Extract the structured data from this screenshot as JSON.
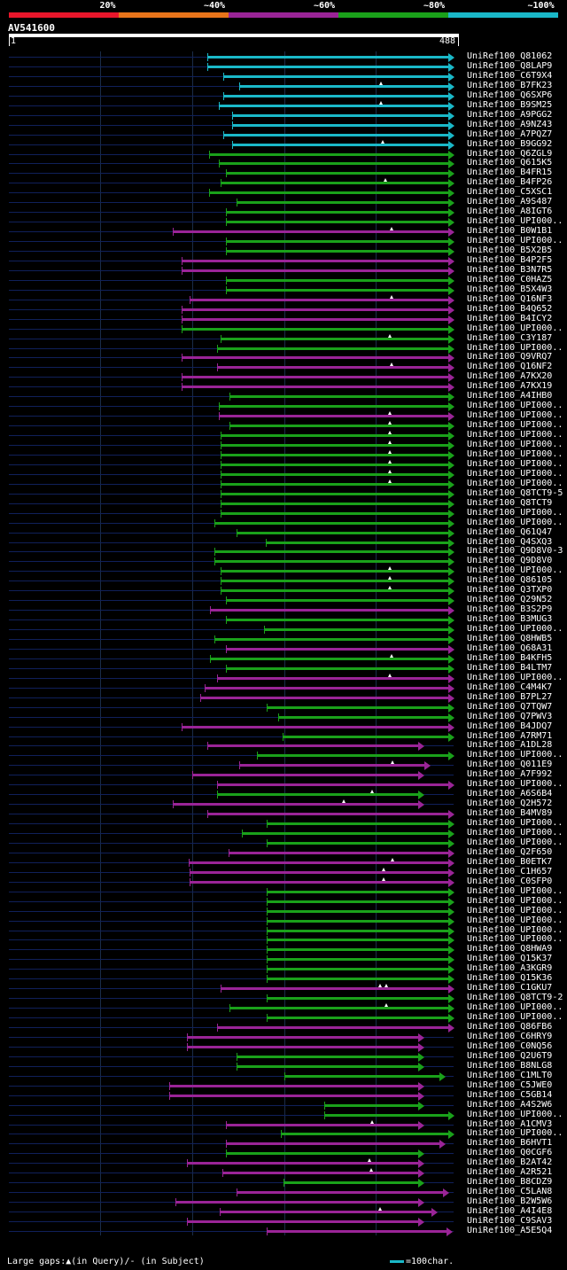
{
  "legend": [
    {
      "label": "20%",
      "color": "#e8162b"
    },
    {
      "label": "~40%",
      "color": "#e8741a"
    },
    {
      "label": "~60%",
      "color": "#9a2497"
    },
    {
      "label": "~80%",
      "color": "#1aa11a"
    },
    {
      "label": "~100%",
      "color": "#1ab8c8"
    }
  ],
  "query": {
    "title": "AV541600",
    "start": "1",
    "end": "488",
    "length": 488
  },
  "hits": [
    {
      "id": "UniRef100_Q81062",
      "c": "cyan",
      "s": 218,
      "e": 488
    },
    {
      "id": "UniRef100_Q8LAP9",
      "c": "cyan",
      "s": 218,
      "e": 488
    },
    {
      "id": "UniRef100_C6T9X4",
      "c": "cyan",
      "s": 235,
      "e": 488
    },
    {
      "id": "UniRef100_B7FK23",
      "c": "cyan",
      "s": 253,
      "e": 488,
      "m": [
        408
      ]
    },
    {
      "id": "UniRef100_Q6SXP6",
      "c": "cyan",
      "s": 235,
      "e": 488
    },
    {
      "id": "UniRef100_B9SM25",
      "c": "cyan",
      "s": 230,
      "e": 488,
      "m": [
        408
      ]
    },
    {
      "id": "UniRef100_A9PGG2",
      "c": "cyan",
      "s": 245,
      "e": 488
    },
    {
      "id": "UniRef100_A9NZ43",
      "c": "cyan",
      "s": 245,
      "e": 488
    },
    {
      "id": "UniRef100_A7PQZ7",
      "c": "cyan",
      "s": 235,
      "e": 488
    },
    {
      "id": "UniRef100_B9GG92",
      "c": "cyan",
      "s": 245,
      "e": 488,
      "m": [
        410
      ]
    },
    {
      "id": "UniRef100_Q6ZGL9",
      "c": "green",
      "s": 220,
      "e": 488
    },
    {
      "id": "UniRef100_Q615K5",
      "c": "green",
      "s": 230,
      "e": 488
    },
    {
      "id": "UniRef100_B4FR15",
      "c": "green",
      "s": 238,
      "e": 488
    },
    {
      "id": "UniRef100_B4FP26",
      "c": "green",
      "s": 232,
      "e": 488,
      "m": [
        413
      ]
    },
    {
      "id": "UniRef100_C5XSC1",
      "c": "green",
      "s": 220,
      "e": 488
    },
    {
      "id": "UniRef100_A9S487",
      "c": "green",
      "s": 250,
      "e": 488
    },
    {
      "id": "UniRef100_A8IGT6",
      "c": "green",
      "s": 238,
      "e": 488
    },
    {
      "id": "UniRef100_UPI000..",
      "c": "green",
      "s": 238,
      "e": 488
    },
    {
      "id": "UniRef100_B0W1B1",
      "c": "magenta",
      "s": 180,
      "e": 488,
      "m": [
        420
      ]
    },
    {
      "id": "UniRef100_UPI000..",
      "c": "green",
      "s": 238,
      "e": 488
    },
    {
      "id": "UniRef100_B5X2B5",
      "c": "green",
      "s": 238,
      "e": 488
    },
    {
      "id": "UniRef100_B4P2F5",
      "c": "magenta",
      "s": 190,
      "e": 488
    },
    {
      "id": "UniRef100_B3N7R5",
      "c": "magenta",
      "s": 190,
      "e": 488
    },
    {
      "id": "UniRef100_C0HAZ5",
      "c": "green",
      "s": 238,
      "e": 488
    },
    {
      "id": "UniRef100_B5X4W3",
      "c": "green",
      "s": 238,
      "e": 488
    },
    {
      "id": "UniRef100_Q16NF3",
      "c": "magenta",
      "s": 198,
      "e": 488,
      "m": [
        420
      ]
    },
    {
      "id": "UniRef100_B4Q652",
      "c": "magenta",
      "s": 190,
      "e": 488
    },
    {
      "id": "UniRef100_B4ICY2",
      "c": "magenta",
      "s": 190,
      "e": 488
    },
    {
      "id": "UniRef100_UPI000..",
      "c": "green",
      "s": 190,
      "e": 488
    },
    {
      "id": "UniRef100_C3Y187",
      "c": "green",
      "s": 232,
      "e": 488,
      "m": [
        418
      ]
    },
    {
      "id": "UniRef100_UPI000..",
      "c": "green",
      "s": 228,
      "e": 488
    },
    {
      "id": "UniRef100_Q9VRQ7",
      "c": "magenta",
      "s": 190,
      "e": 488
    },
    {
      "id": "UniRef100_Q16NF2",
      "c": "magenta",
      "s": 228,
      "e": 488,
      "m": [
        420
      ]
    },
    {
      "id": "UniRef100_A7KX20",
      "c": "magenta",
      "s": 190,
      "e": 488
    },
    {
      "id": "UniRef100_A7KX19",
      "c": "magenta",
      "s": 190,
      "e": 488
    },
    {
      "id": "UniRef100_A4IHB0",
      "c": "green",
      "s": 242,
      "e": 488
    },
    {
      "id": "UniRef100_UPI000..",
      "c": "green",
      "s": 230,
      "e": 488
    },
    {
      "id": "UniRef100_UPI000..",
      "c": "magenta",
      "s": 230,
      "e": 488,
      "m": [
        418
      ]
    },
    {
      "id": "UniRef100_UPI000..",
      "c": "green",
      "s": 242,
      "e": 488,
      "m": [
        418
      ]
    },
    {
      "id": "UniRef100_UPI000..",
      "c": "green",
      "s": 232,
      "e": 488,
      "m": [
        418
      ]
    },
    {
      "id": "UniRef100_UPI000..",
      "c": "green",
      "s": 232,
      "e": 488,
      "m": [
        418
      ]
    },
    {
      "id": "UniRef100_UPI000..",
      "c": "green",
      "s": 232,
      "e": 488,
      "m": [
        418
      ]
    },
    {
      "id": "UniRef100_UPI000..",
      "c": "green",
      "s": 232,
      "e": 488,
      "m": [
        418
      ]
    },
    {
      "id": "UniRef100_UPI000..",
      "c": "green",
      "s": 232,
      "e": 488,
      "m": [
        418
      ]
    },
    {
      "id": "UniRef100_UPI000..",
      "c": "green",
      "s": 232,
      "e": 488,
      "m": [
        418
      ]
    },
    {
      "id": "UniRef100_Q8TCT9-5",
      "c": "green",
      "s": 232,
      "e": 488
    },
    {
      "id": "UniRef100_Q8TCT9",
      "c": "green",
      "s": 232,
      "e": 488
    },
    {
      "id": "UniRef100_UPI000..",
      "c": "green",
      "s": 232,
      "e": 488
    },
    {
      "id": "UniRef100_UPI000..",
      "c": "green",
      "s": 226,
      "e": 488
    },
    {
      "id": "UniRef100_Q61Q47",
      "c": "green",
      "s": 250,
      "e": 488
    },
    {
      "id": "UniRef100_Q4SXQ3",
      "c": "green",
      "s": 282,
      "e": 488
    },
    {
      "id": "UniRef100_Q9D8V0-3",
      "c": "green",
      "s": 226,
      "e": 488
    },
    {
      "id": "UniRef100_Q9D8V0",
      "c": "green",
      "s": 226,
      "e": 488
    },
    {
      "id": "UniRef100_UPI000..",
      "c": "green",
      "s": 232,
      "e": 488,
      "m": [
        418
      ]
    },
    {
      "id": "UniRef100_Q86105",
      "c": "green",
      "s": 232,
      "e": 488,
      "m": [
        418
      ]
    },
    {
      "id": "UniRef100_Q3TXP0",
      "c": "green",
      "s": 232,
      "e": 488,
      "m": [
        418
      ]
    },
    {
      "id": "UniRef100_Q29N52",
      "c": "green",
      "s": 238,
      "e": 488
    },
    {
      "id": "UniRef100_B3S2P9",
      "c": "magenta",
      "s": 221,
      "e": 488
    },
    {
      "id": "UniRef100_B3MUG3",
      "c": "green",
      "s": 238,
      "e": 488
    },
    {
      "id": "UniRef100_UPI000..",
      "c": "green",
      "s": 280,
      "e": 488
    },
    {
      "id": "UniRef100_Q8HWB5",
      "c": "green",
      "s": 226,
      "e": 488
    },
    {
      "id": "UniRef100_Q68A31",
      "c": "magenta",
      "s": 238,
      "e": 488
    },
    {
      "id": "UniRef100_B4KFH5",
      "c": "green",
      "s": 221,
      "e": 488,
      "m": [
        420
      ]
    },
    {
      "id": "UniRef100_B4LTM7",
      "c": "green",
      "s": 238,
      "e": 488
    },
    {
      "id": "UniRef100_UPI000..",
      "c": "magenta",
      "s": 228,
      "e": 488,
      "m": [
        418
      ]
    },
    {
      "id": "UniRef100_C4M4K7",
      "c": "magenta",
      "s": 215,
      "e": 488
    },
    {
      "id": "UniRef100_B7PL27",
      "c": "magenta",
      "s": 210,
      "e": 488
    },
    {
      "id": "UniRef100_Q7TQW7",
      "c": "green",
      "s": 283,
      "e": 488
    },
    {
      "id": "UniRef100_Q7PWV3",
      "c": "green",
      "s": 296,
      "e": 488
    },
    {
      "id": "UniRef100_B4JDQ7",
      "c": "magenta",
      "s": 190,
      "e": 488
    },
    {
      "id": "UniRef100_A7RM71",
      "c": "green",
      "s": 300,
      "e": 488
    },
    {
      "id": "UniRef100_A1DL28",
      "c": "magenta",
      "s": 218,
      "e": 455
    },
    {
      "id": "UniRef100_UPI000..",
      "c": "green",
      "s": 272,
      "e": 488
    },
    {
      "id": "UniRef100_Q011E9",
      "c": "magenta",
      "s": 253,
      "e": 462,
      "m": [
        421
      ]
    },
    {
      "id": "UniRef100_A7F992",
      "c": "magenta",
      "s": 201,
      "e": 455
    },
    {
      "id": "UniRef100_UPI000..",
      "c": "magenta",
      "s": 228,
      "e": 488
    },
    {
      "id": "UniRef100_A6S6B4",
      "c": "green",
      "s": 228,
      "e": 455,
      "m": [
        399
      ]
    },
    {
      "id": "UniRef100_Q2H572",
      "c": "magenta",
      "s": 180,
      "e": 455,
      "m": [
        367
      ]
    },
    {
      "id": "UniRef100_B4MV89",
      "c": "magenta",
      "s": 218,
      "e": 488
    },
    {
      "id": "UniRef100_UPI000..",
      "c": "green",
      "s": 283,
      "e": 488
    },
    {
      "id": "UniRef100_UPI000..",
      "c": "green",
      "s": 256,
      "e": 488
    },
    {
      "id": "UniRef100_UPI000..",
      "c": "green",
      "s": 283,
      "e": 488
    },
    {
      "id": "UniRef100_Q2F650",
      "c": "magenta",
      "s": 241,
      "e": 488
    },
    {
      "id": "UniRef100_B0ETK7",
      "c": "magenta",
      "s": 197,
      "e": 488,
      "m": [
        421
      ]
    },
    {
      "id": "UniRef100_C1H657",
      "c": "magenta",
      "s": 198,
      "e": 488,
      "m": [
        411
      ]
    },
    {
      "id": "UniRef100_C0SFP0",
      "c": "magenta",
      "s": 198,
      "e": 488,
      "m": [
        411
      ]
    },
    {
      "id": "UniRef100_UPI000..",
      "c": "green",
      "s": 283,
      "e": 488
    },
    {
      "id": "UniRef100_UPI000..",
      "c": "green",
      "s": 283,
      "e": 488
    },
    {
      "id": "UniRef100_UPI000..",
      "c": "green",
      "s": 283,
      "e": 488
    },
    {
      "id": "UniRef100_UPI000..",
      "c": "green",
      "s": 283,
      "e": 488
    },
    {
      "id": "UniRef100_UPI000..",
      "c": "green",
      "s": 283,
      "e": 488
    },
    {
      "id": "UniRef100_UPI000..",
      "c": "green",
      "s": 283,
      "e": 488
    },
    {
      "id": "UniRef100_Q8HWA9",
      "c": "green",
      "s": 283,
      "e": 488
    },
    {
      "id": "UniRef100_Q15K37",
      "c": "green",
      "s": 283,
      "e": 488
    },
    {
      "id": "UniRef100_A3KGR9",
      "c": "green",
      "s": 283,
      "e": 488
    },
    {
      "id": "UniRef100_Q15K36",
      "c": "green",
      "s": 283,
      "e": 488
    },
    {
      "id": "UniRef100_C1GKU7",
      "c": "magenta",
      "s": 232,
      "e": 488,
      "m": [
        407,
        414
      ]
    },
    {
      "id": "UniRef100_Q8TCT9-2",
      "c": "green",
      "s": 283,
      "e": 488
    },
    {
      "id": "UniRef100_UPI000..",
      "c": "green",
      "s": 242,
      "e": 488,
      "m": [
        414
      ]
    },
    {
      "id": "UniRef100_UPI000..",
      "c": "green",
      "s": 283,
      "e": 488
    },
    {
      "id": "UniRef100_Q86FB6",
      "c": "magenta",
      "s": 228,
      "e": 488
    },
    {
      "id": "UniRef100_C6HRY9",
      "c": "magenta",
      "s": 195,
      "e": 455
    },
    {
      "id": "UniRef100_C0NQ56",
      "c": "magenta",
      "s": 195,
      "e": 455
    },
    {
      "id": "UniRef100_Q2U6T9",
      "c": "green",
      "s": 250,
      "e": 455
    },
    {
      "id": "UniRef100_B8NLG8",
      "c": "green",
      "s": 250,
      "e": 455
    },
    {
      "id": "UniRef100_C1MLT0",
      "c": "green",
      "s": 302,
      "e": 478
    },
    {
      "id": "UniRef100_C5JWE0",
      "c": "magenta",
      "s": 176,
      "e": 455
    },
    {
      "id": "UniRef100_C5GB14",
      "c": "magenta",
      "s": 176,
      "e": 455
    },
    {
      "id": "UniRef100_A4S2W6",
      "c": "green",
      "s": 346,
      "e": 455
    },
    {
      "id": "UniRef100_UPI000..",
      "c": "green",
      "s": 346,
      "e": 488
    },
    {
      "id": "UniRef100_A1CMV3",
      "c": "magenta",
      "s": 238,
      "e": 455,
      "m": [
        399
      ]
    },
    {
      "id": "UniRef100_UPI000..",
      "c": "green",
      "s": 298,
      "e": 488
    },
    {
      "id": "UniRef100_B6HVT1",
      "c": "magenta",
      "s": 238,
      "e": 478
    },
    {
      "id": "UniRef100_Q0CGF6",
      "c": "green",
      "s": 238,
      "e": 455
    },
    {
      "id": "UniRef100_B2AT42",
      "c": "magenta",
      "s": 195,
      "e": 455,
      "m": [
        396
      ]
    },
    {
      "id": "UniRef100_A2R521",
      "c": "magenta",
      "s": 234,
      "e": 455,
      "m": [
        398
      ]
    },
    {
      "id": "UniRef100_B8CDZ9",
      "c": "green",
      "s": 301,
      "e": 455
    },
    {
      "id": "UniRef100_C5LAN8",
      "c": "magenta",
      "s": 250,
      "e": 482
    },
    {
      "id": "UniRef100_B2W5W6",
      "c": "magenta",
      "s": 183,
      "e": 455
    },
    {
      "id": "UniRef100_A4I4E8",
      "c": "magenta",
      "s": 231,
      "e": 470,
      "m": [
        407
      ]
    },
    {
      "id": "UniRef100_C9SAV3",
      "c": "magenta",
      "s": 195,
      "e": 455
    },
    {
      "id": "UniRef100_A5E5Q4",
      "c": "magenta",
      "s": 283,
      "e": 486
    }
  ],
  "colors": {
    "cyan": "#1ab8c8",
    "green": "#1aa11a",
    "magenta": "#9a2497"
  },
  "footer": {
    "gaps_text": "Large gaps:▲(in Query)/- (in Subject)",
    "scale_text": "=100char."
  }
}
